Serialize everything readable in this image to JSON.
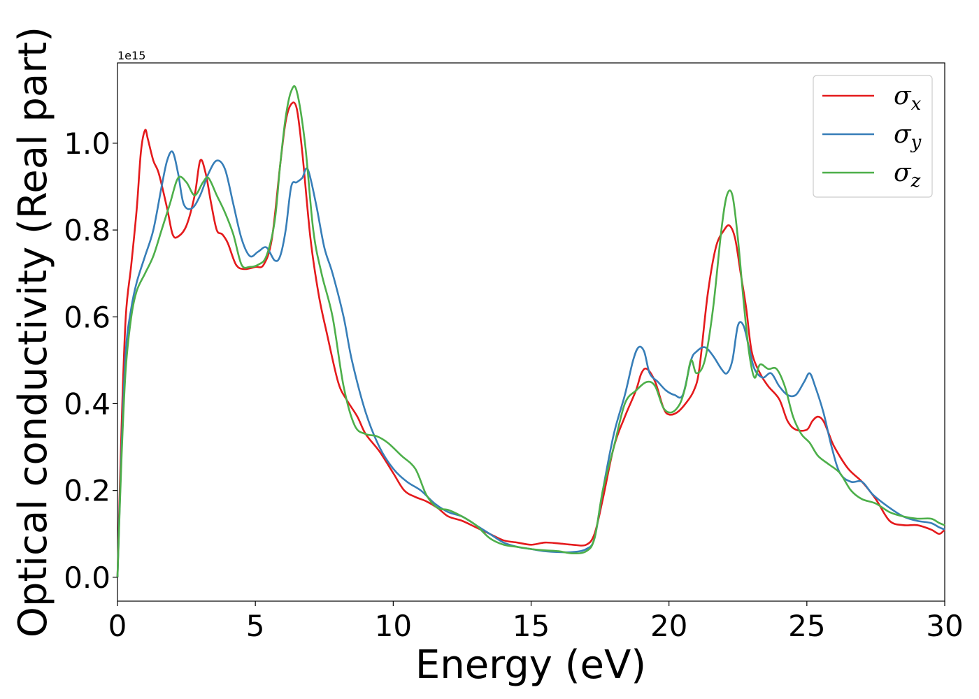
{
  "chart_data": {
    "type": "line",
    "xlabel": "Energy (eV)",
    "ylabel": "Optical conductivity (Real part)",
    "y_offset_text": "1e15",
    "y_multiplier": 1000000000000000.0,
    "xlim": [
      0,
      30
    ],
    "ylim": [
      -0.055,
      1.185
    ],
    "x_ticks": [
      0,
      5,
      10,
      15,
      20,
      25,
      30
    ],
    "x_tick_labels": [
      "0",
      "5",
      "10",
      "15",
      "20",
      "25",
      "30"
    ],
    "y_ticks": [
      0.0,
      0.2,
      0.4,
      0.6,
      0.8,
      1.0
    ],
    "y_tick_labels": [
      "0.0",
      "0.2",
      "0.4",
      "0.6",
      "0.8",
      "1.0"
    ],
    "grid": false,
    "legend_position": "top-right",
    "series": [
      {
        "name": "σx",
        "legend_symbol": "σ",
        "legend_sub": "x",
        "color": "#e41a1c",
        "x": [
          0,
          0.15,
          0.3,
          0.5,
          0.7,
          0.85,
          1.0,
          1.1,
          1.3,
          1.5,
          1.8,
          2.0,
          2.2,
          2.5,
          2.8,
          3.0,
          3.2,
          3.4,
          3.6,
          3.8,
          4.0,
          4.3,
          4.6,
          5.0,
          5.3,
          5.6,
          5.9,
          6.1,
          6.3,
          6.5,
          6.7,
          7.0,
          7.3,
          7.6,
          8.0,
          8.3,
          8.7,
          9.0,
          9.5,
          10.0,
          10.4,
          10.8,
          11.2,
          11.6,
          12.0,
          12.5,
          13.0,
          13.5,
          14.0,
          14.5,
          15.0,
          15.5,
          16.0,
          16.5,
          17.0,
          17.3,
          17.6,
          18.0,
          18.4,
          18.8,
          19.0,
          19.2,
          19.5,
          19.8,
          20.0,
          20.3,
          20.6,
          20.9,
          21.1,
          21.4,
          21.7,
          22.0,
          22.2,
          22.4,
          22.6,
          22.8,
          23.0,
          23.3,
          23.6,
          24.0,
          24.3,
          24.6,
          25.0,
          25.2,
          25.4,
          25.6,
          25.8,
          26.0,
          26.5,
          27.0,
          27.5,
          28.0,
          28.5,
          29.0,
          29.5,
          29.8,
          30.0
        ],
        "y": [
          0.0,
          0.35,
          0.6,
          0.72,
          0.85,
          0.98,
          1.03,
          1.01,
          0.96,
          0.93,
          0.85,
          0.79,
          0.785,
          0.81,
          0.88,
          0.96,
          0.93,
          0.86,
          0.8,
          0.79,
          0.77,
          0.72,
          0.71,
          0.715,
          0.72,
          0.78,
          0.95,
          1.05,
          1.09,
          1.08,
          0.98,
          0.78,
          0.65,
          0.56,
          0.45,
          0.41,
          0.37,
          0.33,
          0.29,
          0.24,
          0.2,
          0.185,
          0.175,
          0.16,
          0.14,
          0.13,
          0.115,
          0.1,
          0.085,
          0.08,
          0.075,
          0.08,
          0.078,
          0.075,
          0.075,
          0.1,
          0.18,
          0.3,
          0.37,
          0.43,
          0.47,
          0.48,
          0.45,
          0.39,
          0.375,
          0.38,
          0.4,
          0.43,
          0.48,
          0.65,
          0.76,
          0.8,
          0.81,
          0.78,
          0.7,
          0.62,
          0.52,
          0.47,
          0.44,
          0.41,
          0.36,
          0.34,
          0.34,
          0.36,
          0.37,
          0.36,
          0.33,
          0.3,
          0.25,
          0.22,
          0.18,
          0.13,
          0.12,
          0.12,
          0.11,
          0.1,
          0.11
        ]
      },
      {
        "name": "σy",
        "legend_symbol": "σ",
        "legend_sub": "y",
        "color": "#377eb8",
        "x": [
          0,
          0.15,
          0.3,
          0.5,
          0.7,
          1.0,
          1.3,
          1.6,
          1.8,
          2.0,
          2.2,
          2.4,
          2.7,
          3.0,
          3.3,
          3.6,
          3.9,
          4.2,
          4.5,
          4.8,
          5.1,
          5.4,
          5.7,
          5.9,
          6.1,
          6.3,
          6.5,
          6.7,
          6.9,
          7.2,
          7.5,
          7.8,
          8.2,
          8.5,
          9.0,
          9.5,
          10.0,
          10.5,
          11.0,
          11.5,
          12.0,
          12.5,
          13.0,
          13.5,
          14.0,
          14.5,
          15.0,
          15.5,
          16.0,
          16.5,
          17.0,
          17.3,
          17.6,
          18.0,
          18.4,
          18.7,
          18.9,
          19.1,
          19.3,
          19.6,
          19.9,
          20.2,
          20.5,
          20.8,
          21.0,
          21.3,
          21.6,
          21.9,
          22.1,
          22.3,
          22.5,
          22.7,
          22.9,
          23.1,
          23.4,
          23.7,
          24.0,
          24.3,
          24.6,
          24.9,
          25.1,
          25.3,
          25.6,
          25.9,
          26.2,
          26.6,
          27.0,
          27.4,
          28.0,
          28.5,
          29.0,
          29.5,
          29.8,
          30.0
        ],
        "y": [
          0.0,
          0.3,
          0.52,
          0.62,
          0.68,
          0.74,
          0.8,
          0.9,
          0.96,
          0.98,
          0.93,
          0.86,
          0.85,
          0.88,
          0.93,
          0.96,
          0.94,
          0.86,
          0.78,
          0.74,
          0.75,
          0.76,
          0.73,
          0.74,
          0.8,
          0.9,
          0.91,
          0.92,
          0.94,
          0.86,
          0.76,
          0.7,
          0.6,
          0.5,
          0.38,
          0.3,
          0.25,
          0.22,
          0.2,
          0.17,
          0.15,
          0.14,
          0.12,
          0.1,
          0.08,
          0.07,
          0.065,
          0.06,
          0.058,
          0.058,
          0.065,
          0.09,
          0.2,
          0.33,
          0.42,
          0.5,
          0.53,
          0.52,
          0.47,
          0.45,
          0.43,
          0.42,
          0.42,
          0.5,
          0.52,
          0.53,
          0.51,
          0.48,
          0.47,
          0.5,
          0.58,
          0.58,
          0.53,
          0.48,
          0.46,
          0.47,
          0.44,
          0.42,
          0.42,
          0.45,
          0.47,
          0.44,
          0.38,
          0.3,
          0.24,
          0.22,
          0.22,
          0.19,
          0.16,
          0.14,
          0.13,
          0.125,
          0.115,
          0.11
        ]
      },
      {
        "name": "σz",
        "legend_symbol": "σ",
        "legend_sub": "z",
        "color": "#4daf4a",
        "x": [
          0,
          0.15,
          0.3,
          0.5,
          0.7,
          1.0,
          1.3,
          1.6,
          1.9,
          2.2,
          2.5,
          2.8,
          3.1,
          3.3,
          3.6,
          3.9,
          4.2,
          4.5,
          4.8,
          5.1,
          5.4,
          5.7,
          5.9,
          6.1,
          6.3,
          6.5,
          6.8,
          7.1,
          7.4,
          7.8,
          8.2,
          8.6,
          9.0,
          9.4,
          9.8,
          10.3,
          10.8,
          11.2,
          11.6,
          12.0,
          12.5,
          13.0,
          13.5,
          14.0,
          14.5,
          15.0,
          15.5,
          16.0,
          16.5,
          17.0,
          17.3,
          17.6,
          18.0,
          18.4,
          18.8,
          19.2,
          19.5,
          19.8,
          20.1,
          20.4,
          20.6,
          20.8,
          21.0,
          21.3,
          21.6,
          21.9,
          22.1,
          22.3,
          22.5,
          22.7,
          22.9,
          23.1,
          23.3,
          23.6,
          23.9,
          24.2,
          24.5,
          24.8,
          25.1,
          25.4,
          25.8,
          26.2,
          26.6,
          27.0,
          27.5,
          28.0,
          28.5,
          29.0,
          29.5,
          29.8,
          30.0
        ],
        "y": [
          0.0,
          0.28,
          0.48,
          0.6,
          0.66,
          0.7,
          0.74,
          0.8,
          0.86,
          0.92,
          0.91,
          0.88,
          0.91,
          0.92,
          0.88,
          0.84,
          0.79,
          0.72,
          0.715,
          0.72,
          0.74,
          0.82,
          0.95,
          1.06,
          1.12,
          1.12,
          1.0,
          0.8,
          0.7,
          0.6,
          0.44,
          0.35,
          0.33,
          0.325,
          0.31,
          0.28,
          0.25,
          0.19,
          0.16,
          0.155,
          0.14,
          0.12,
          0.09,
          0.075,
          0.07,
          0.065,
          0.062,
          0.06,
          0.055,
          0.06,
          0.09,
          0.2,
          0.3,
          0.4,
          0.43,
          0.45,
          0.44,
          0.39,
          0.38,
          0.4,
          0.44,
          0.5,
          0.47,
          0.5,
          0.62,
          0.8,
          0.88,
          0.88,
          0.78,
          0.64,
          0.52,
          0.46,
          0.49,
          0.48,
          0.48,
          0.44,
          0.37,
          0.33,
          0.31,
          0.28,
          0.26,
          0.24,
          0.2,
          0.18,
          0.17,
          0.15,
          0.14,
          0.135,
          0.135,
          0.125,
          0.12
        ]
      }
    ]
  }
}
